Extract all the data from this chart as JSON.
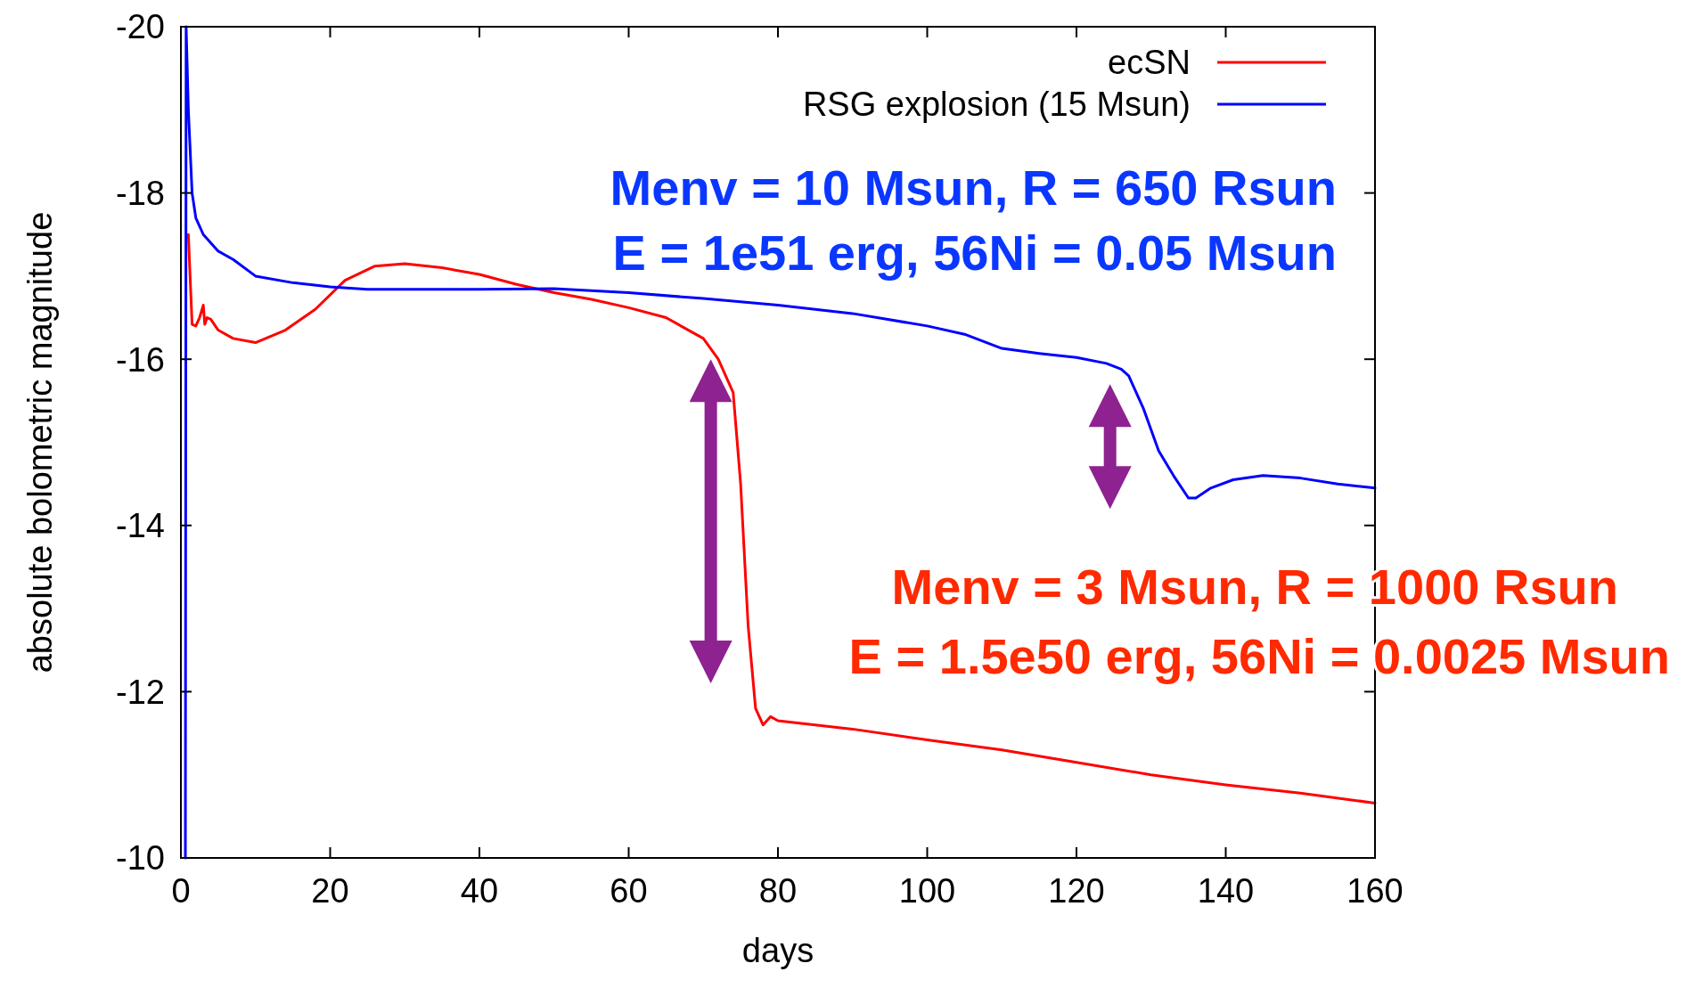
{
  "chart_data": {
    "type": "line",
    "xlabel": "days",
    "ylabel": "absolute bolometric magnitude",
    "xlim": [
      0,
      160
    ],
    "xticks": [
      0,
      20,
      40,
      60,
      80,
      100,
      120,
      140,
      160
    ],
    "ylim": [
      -10,
      -20
    ],
    "yticks": [
      -20,
      -18,
      -16,
      -14,
      -12,
      -10
    ],
    "grid": false,
    "legend": "top right",
    "marker": "none",
    "line_style": "solid",
    "series": [
      {
        "name": "ecSN",
        "color": "#ff0000",
        "x": [
          1,
          1.5,
          2,
          2.5,
          3,
          3.2,
          3.5,
          4,
          5,
          7,
          10,
          14,
          18,
          22,
          26,
          30,
          35,
          40,
          45,
          50,
          55,
          60,
          65,
          70,
          72,
          74,
          75,
          76,
          77,
          78,
          79,
          80,
          90,
          100,
          110,
          120,
          130,
          140,
          150,
          160
        ],
        "values": [
          -17.5,
          -16.42,
          -16.4,
          -16.5,
          -16.65,
          -16.42,
          -16.5,
          -16.48,
          -16.35,
          -16.25,
          -16.2,
          -16.35,
          -16.6,
          -16.95,
          -17.12,
          -17.15,
          -17.1,
          -17.02,
          -16.9,
          -16.8,
          -16.72,
          -16.62,
          -16.5,
          -16.25,
          -16.0,
          -15.6,
          -14.5,
          -12.8,
          -11.8,
          -11.6,
          -11.7,
          -11.65,
          -11.55,
          -11.42,
          -11.3,
          -11.15,
          -11.0,
          -10.88,
          -10.78,
          -10.66
        ]
      },
      {
        "name": "RSG explosion (15 Msun)",
        "color": "#0000ff",
        "x": [
          0.6,
          0.7,
          1,
          1.5,
          2,
          3,
          5,
          7,
          10,
          15,
          20,
          25,
          30,
          40,
          50,
          60,
          70,
          80,
          90,
          100,
          105,
          110,
          115,
          120,
          124,
          126,
          127,
          129,
          131,
          133,
          135,
          136,
          138,
          141,
          145,
          150,
          155,
          160
        ],
        "values": [
          -10,
          -20,
          -19,
          -18.0,
          -17.7,
          -17.5,
          -17.3,
          -17.2,
          -17.0,
          -16.92,
          -16.87,
          -16.84,
          -16.84,
          -16.84,
          -16.85,
          -16.8,
          -16.73,
          -16.65,
          -16.55,
          -16.4,
          -16.3,
          -16.13,
          -16.07,
          -16.02,
          -15.95,
          -15.88,
          -15.8,
          -15.4,
          -14.9,
          -14.6,
          -14.33,
          -14.33,
          -14.45,
          -14.55,
          -14.6,
          -14.57,
          -14.5,
          -14.45
        ]
      }
    ],
    "annotations": [
      "Menv = 10 Msun, R = 650 Rsun",
      "E = 1e51 erg, 56Ni = 0.05 Msun",
      "Menv = 3 Msun, R = 1000 Rsun",
      "E = 1.5e50 erg, 56Ni = 0.0025 Msun"
    ]
  }
}
